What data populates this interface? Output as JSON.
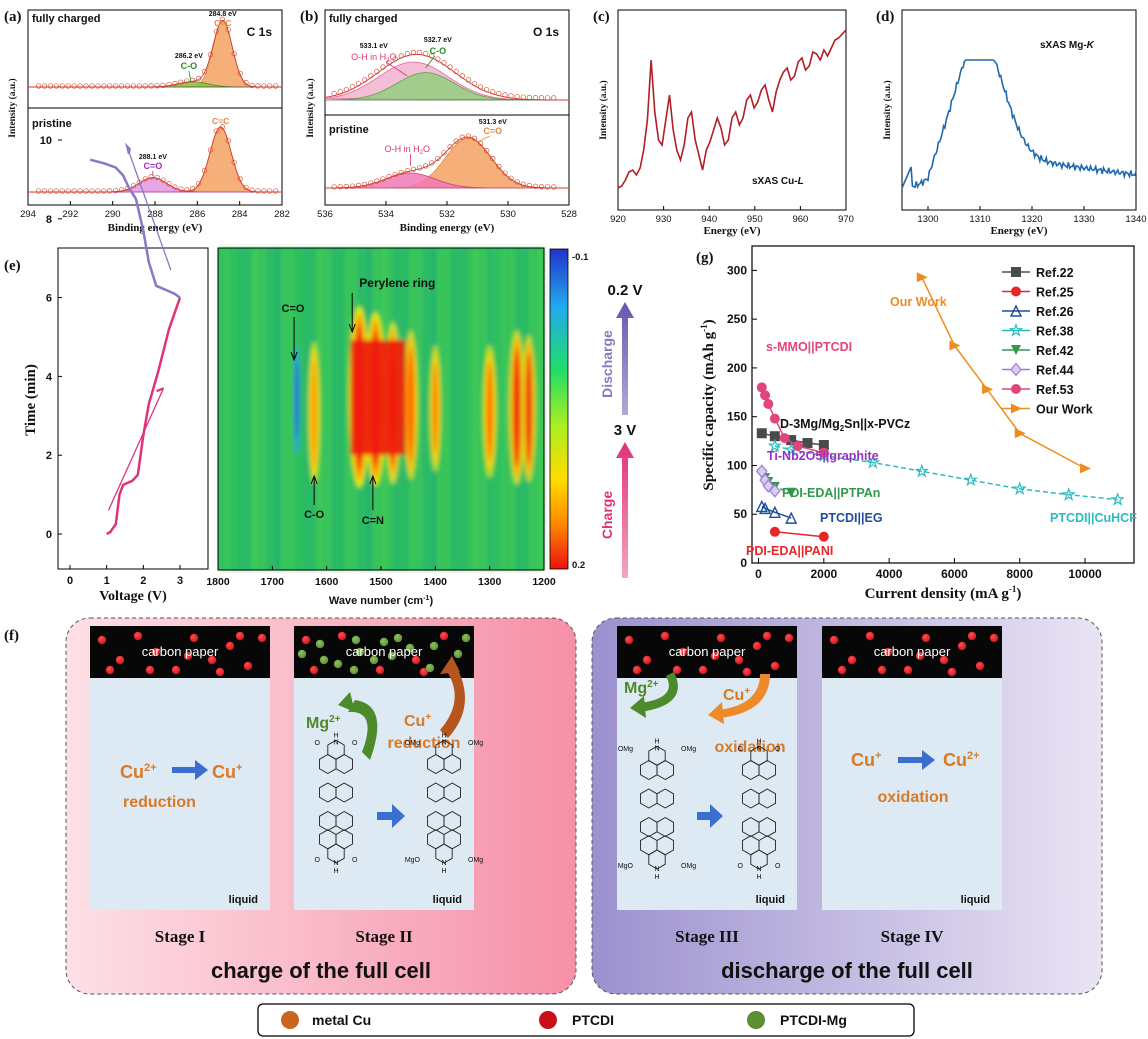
{
  "panels": {
    "a": {
      "label": "(a)",
      "element": "C 1s",
      "top_title": "fully charged",
      "bottom_title": "pristine",
      "ylabel": "Intensity (a.u.)",
      "xlabel": "Binding energy (eV)",
      "xticks": [
        "294",
        "292",
        "290",
        "288",
        "286",
        "284",
        "282"
      ],
      "top_peaks": [
        {
          "energy": "284.8 eV",
          "name": "C=C"
        },
        {
          "energy": "286.2 eV",
          "name": "C-O"
        }
      ],
      "bottom_peaks": [
        {
          "energy": "288.1 eV",
          "name": "C=O"
        },
        {
          "name": "C=C"
        }
      ]
    },
    "b": {
      "label": "(b)",
      "element": "O 1s",
      "top_title": "fully charged",
      "bottom_title": "pristine",
      "ylabel": "Intensity (a.u.)",
      "xlabel": "Binding energy (eV)",
      "xticks": [
        "536",
        "534",
        "532",
        "530",
        "528"
      ],
      "top_peaks": [
        {
          "energy": "533.1 eV",
          "name": "O-H in H",
          "sub": "2",
          "tail": "O"
        },
        {
          "energy": "532.7 eV",
          "name": "C-O"
        }
      ],
      "bottom_peaks": [
        {
          "name": "O-H in H",
          "sub": "2",
          "tail": "O"
        },
        {
          "energy": "531.3 eV",
          "name": "C=O"
        }
      ]
    },
    "c": {
      "label": "(c)",
      "ylabel": "Intensity (a.u.)",
      "xlabel": "Energy (eV)",
      "annotation": "sXAS Cu-",
      "annotation_italic": "L",
      "xticks": [
        "920",
        "930",
        "940",
        "950",
        "960",
        "970"
      ]
    },
    "d": {
      "label": "(d)",
      "ylabel": "Intensity (a.u.)",
      "xlabel": "Energy (eV)",
      "annotation": "sXAS Mg-",
      "annotation_italic": "K",
      "xticks": [
        "1300",
        "1310",
        "1320",
        "1330",
        "1340"
      ]
    },
    "e": {
      "label": "(e)",
      "ylabel": "Time (min)",
      "xlabel": "Voltage (V)",
      "yticks": [
        "0",
        "2",
        "4",
        "6",
        "8",
        "10"
      ],
      "xticks": [
        "0",
        "1",
        "2",
        "3"
      ],
      "map_xlabel": "Wave number (cm",
      "map_xlabel_sup": "-1",
      "map_xlabel_tail": ")",
      "map_xticks": [
        "1800",
        "1700",
        "1600",
        "1500",
        "1400",
        "1300",
        "1200"
      ],
      "annotations": [
        "C=O",
        "Perylene ring",
        "C-O",
        "C=N"
      ],
      "colorbar_max": "-0.1",
      "colorbar_min": "0.2",
      "voltage_top": "0.2 V",
      "voltage_bottom": "3 V",
      "discharge": "Discharge",
      "charge": "Charge"
    },
    "f": {
      "label": "(f)",
      "carbon_paper": "carbon paper",
      "liquid": "liquid",
      "stages": [
        "Stage I",
        "Stage II",
        "Stage III",
        "Stage IV"
      ],
      "charge_caption": "charge of the full cell",
      "discharge_caption": "discharge of the full cell",
      "cu2": "Cu",
      "cu2_sup": "2+",
      "cu1": "Cu",
      "cu1_sup": "+",
      "mg": "Mg",
      "mg_sup": "2+",
      "reduction": "reduction",
      "oxidation": "oxidation",
      "omg": "OMg",
      "mgo": "MgO",
      "n": "N",
      "h": "H",
      "o": "O"
    },
    "g": {
      "label": "(g)"
    }
  },
  "legend_bottom": [
    {
      "name": "metal Cu",
      "color": "#c8651e"
    },
    {
      "name": "PTCDI",
      "color": "#c8101a"
    },
    {
      "name": "PTCDI-Mg",
      "color": "#5c8f2f"
    }
  ],
  "chart_data": [
    {
      "type": "line",
      "panel": "g",
      "xlabel": "Current density (mA g",
      "xlabel_sup": "-1",
      "xlabel_tail": ")",
      "ylabel": "Specific capacity (mAh g",
      "ylabel_sup": "-1",
      "ylabel_tail": ")",
      "xlim": [
        -200,
        11500
      ],
      "ylim": [
        0,
        325
      ],
      "xticks": [
        "0",
        "2000",
        "4000",
        "6000",
        "8000",
        "10000"
      ],
      "yticks": [
        "0",
        "50",
        "100",
        "150",
        "200",
        "250",
        "300"
      ],
      "series": [
        {
          "name": "Ref.22",
          "color": "#4a4a4a",
          "marker": "square",
          "x": [
            100,
            500,
            1000,
            1500,
            2000
          ],
          "y": [
            133,
            130,
            126,
            123,
            121
          ]
        },
        {
          "name": "Ref.25",
          "color": "#e8262a",
          "marker": "circle",
          "x": [
            500,
            2000
          ],
          "y": [
            32,
            27
          ]
        },
        {
          "name": "Ref.26",
          "color": "#1f4e9c",
          "marker": "triangle-up",
          "x": [
            100,
            200,
            500,
            1000
          ],
          "y": [
            58,
            56,
            52,
            46
          ]
        },
        {
          "name": "Ref.38",
          "color": "#2bbcc0",
          "marker": "star",
          "x": [
            500,
            1000,
            2000,
            3500,
            5000,
            6500,
            8000,
            9500,
            11000
          ],
          "y": [
            120,
            116,
            110,
            103,
            94,
            85,
            76,
            70,
            65
          ]
        },
        {
          "name": "Ref.42",
          "color": "#2f9a4c",
          "marker": "triangle-down",
          "x": [
            100,
            200,
            300,
            500,
            1000
          ],
          "y": [
            91,
            87,
            83,
            78,
            72
          ]
        },
        {
          "name": "Ref.44",
          "color": "#9b7fd1",
          "marker": "diamond",
          "x": [
            100,
            200,
            300,
            500
          ],
          "y": [
            94,
            85,
            79,
            74
          ]
        },
        {
          "name": "Ref.53",
          "color": "#e0457e",
          "marker": "circle",
          "x": [
            100,
            200,
            300,
            500,
            800,
            1200,
            2000
          ],
          "y": [
            180,
            172,
            163,
            148,
            128,
            120,
            113
          ]
        },
        {
          "name": "Our Work",
          "color": "#f08c1e",
          "marker": "triangle-right",
          "x": [
            5000,
            6000,
            7000,
            8000,
            10000
          ],
          "y": [
            293,
            223,
            178,
            133,
            97
          ]
        }
      ],
      "annotations": [
        {
          "text": "Our Work",
          "color": "#f08c1e"
        },
        {
          "text": "s-MMO||PTCDI",
          "color": "#e0457e"
        },
        {
          "text": "D-3Mg/Mg",
          "sub": "2",
          "tail": "Sn||x-PVCz",
          "color": "#111111"
        },
        {
          "text": "Ti-Nb2O5||graphite",
          "color": "#9b2fc7"
        },
        {
          "text": "PDI-EDA||PTPAn",
          "color": "#2f9a4c"
        },
        {
          "text": "PTCDI||EG",
          "color": "#1f4e9c"
        },
        {
          "text": "PDI-EDA||PANI",
          "color": "#e8262a"
        },
        {
          "text": "PTCDI||CuHCF",
          "color": "#2bbcc0"
        }
      ]
    }
  ]
}
